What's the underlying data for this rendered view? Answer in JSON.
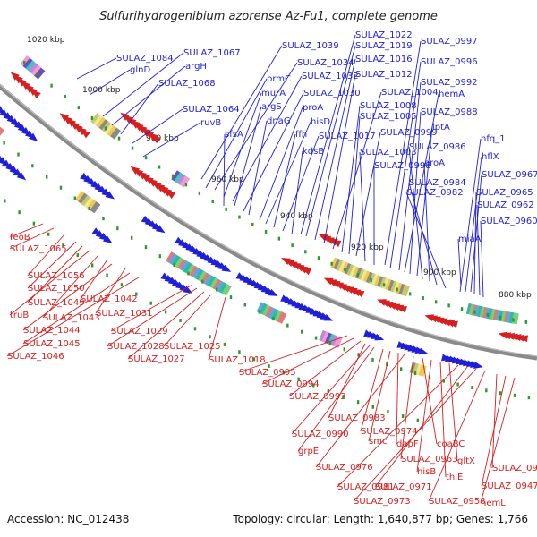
{
  "title": "Sulfurihydrogenibium azorense Az-Fu1, complete genome",
  "footer": {
    "accession": "Accession: NC_012438",
    "summary": "Topology: circular; Length: 1,640,877 bp; Genes: 1,766"
  },
  "colors": {
    "forward_label": "#1f1fd6",
    "reverse_label": "#d61f1f",
    "backbone": "#888888",
    "tick": "#2a9a2a"
  },
  "kbp_ticks": [
    "1020 kbp",
    "1000 kbp",
    "980 kbp",
    "960 kbp",
    "940 kbp",
    "920 kbp",
    "900 kbp",
    "880 kbp"
  ],
  "forward_labels": [
    "SULAZ_1084",
    "glnD",
    "SULAZ_1067",
    "argH",
    "SULAZ_1068",
    "SULAZ_1064",
    "ruvB",
    "SULAZ_1039",
    "prmC",
    "SULAZ_1034",
    "murA",
    "SULAZ_1032",
    "argS",
    "SULAZ_1030",
    "dnaG",
    "sfsA",
    "proA",
    "hisD",
    "ffh",
    "SULAZ_1017",
    "kdsB",
    "SULAZ_1022",
    "SULAZ_1019",
    "SULAZ_1016",
    "SULAZ_1012",
    "SULAZ_1004",
    "SULAZ_1008",
    "SULAZ_1005",
    "SULAZ_0999",
    "SULAZ_1003",
    "SULAZ_0998",
    "SULAZ_0997",
    "SULAZ_0996",
    "SULAZ_0992",
    "hemA",
    "SULAZ_0988",
    "lptA",
    "SULAZ_0986",
    "aroA",
    "SULAZ_0984",
    "SULAZ_0982",
    "hfq_1",
    "hflX",
    "SULAZ_0967",
    "SULAZ_0965",
    "SULAZ_0962",
    "SULAZ_0960",
    "miaA"
  ],
  "reverse_labels": [
    "feoB",
    "SULAZ_1065",
    "SULAZ_1056",
    "SULAZ_1050",
    "SULAZ_1049",
    "truB",
    "SULAZ_1043",
    "SULAZ_1042",
    "SULAZ_1044",
    "SULAZ_1031",
    "SULAZ_1045",
    "SULAZ_1046",
    "SULAZ_1029",
    "SULAZ_1028",
    "SULAZ_1027",
    "SULAZ_1025",
    "SULAZ_1018",
    "SULAZ_0995",
    "SULAZ_0994",
    "SULAZ_0993",
    "SULAZ_0983",
    "SULAZ_0990",
    "grpE",
    "SULAZ_0974",
    "smc",
    "dapF",
    "SULAZ_0976",
    "SULAZ_0963",
    "coaBC",
    "hisB",
    "thiE",
    "gltX",
    "SULAZ_0981",
    "SULAZ_0971",
    "SULAZ_0973",
    "SULAZ_0958",
    "SULAZ_0946",
    "SULAZ_0947",
    "hemL"
  ]
}
